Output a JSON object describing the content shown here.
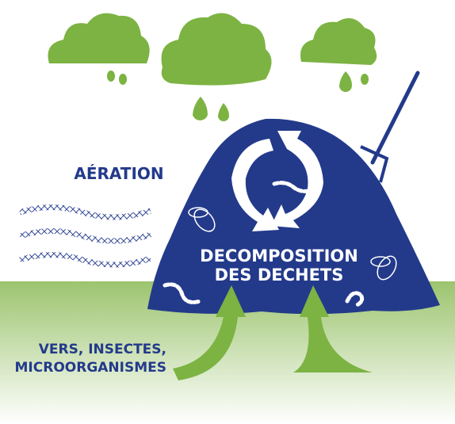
{
  "labels": {
    "aeration": "AÉRATION",
    "process_line1": "DECOMPOSITION",
    "process_line2": "DES DECHETS",
    "agents_line1": "VERS, INSECTES,",
    "agents_line2": "MICROORGANISMES"
  }
}
